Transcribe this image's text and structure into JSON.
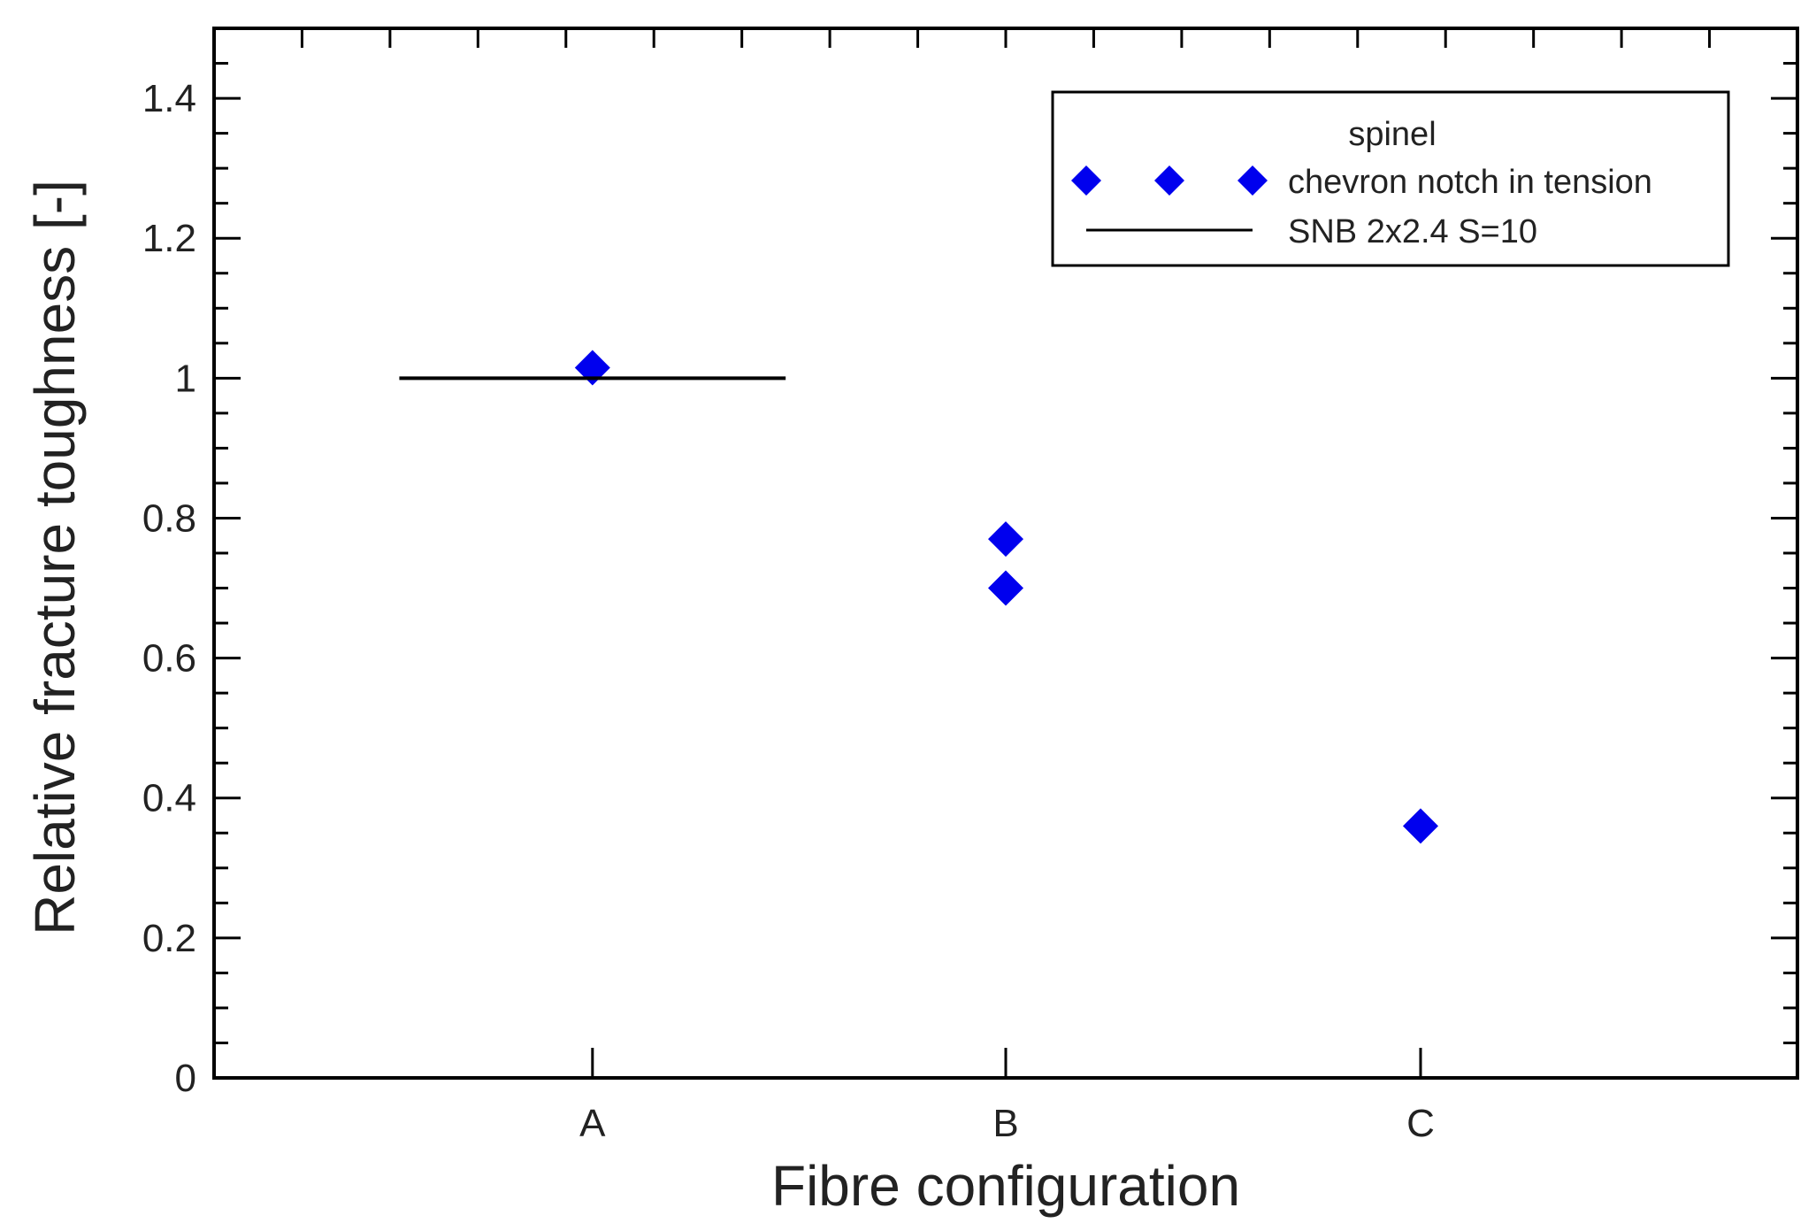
{
  "chart_data": {
    "type": "scatter",
    "xlabel": "Fibre configuration",
    "ylabel": "Relative fracture toughness [-]",
    "categories": [
      "A",
      "B",
      "C"
    ],
    "ylim": [
      0,
      1.5
    ],
    "yticks": [
      0,
      0.2,
      0.4,
      0.6,
      0.8,
      1,
      1.2,
      1.4
    ],
    "ytick_labels": [
      "0",
      "0.2",
      "0.4",
      "0.6",
      "0.8",
      "1",
      "1.2",
      "1.4"
    ],
    "grid": false,
    "legend": {
      "title": "spinel",
      "placement": "top-right"
    },
    "series": [
      {
        "name": "chevron notch in tension",
        "marker": "diamond",
        "color": "#0000ee",
        "points": [
          {
            "x": "A",
            "y": 1.015
          },
          {
            "x": "B",
            "y": 0.77
          },
          {
            "x": "B",
            "y": 0.7
          },
          {
            "x": "C",
            "y": 0.36
          }
        ]
      },
      {
        "name": "SNB 2x2.4 S=10",
        "type": "reference-line",
        "color": "#000000",
        "y": 1.0,
        "x_span_categories": [
          "A"
        ]
      }
    ]
  }
}
